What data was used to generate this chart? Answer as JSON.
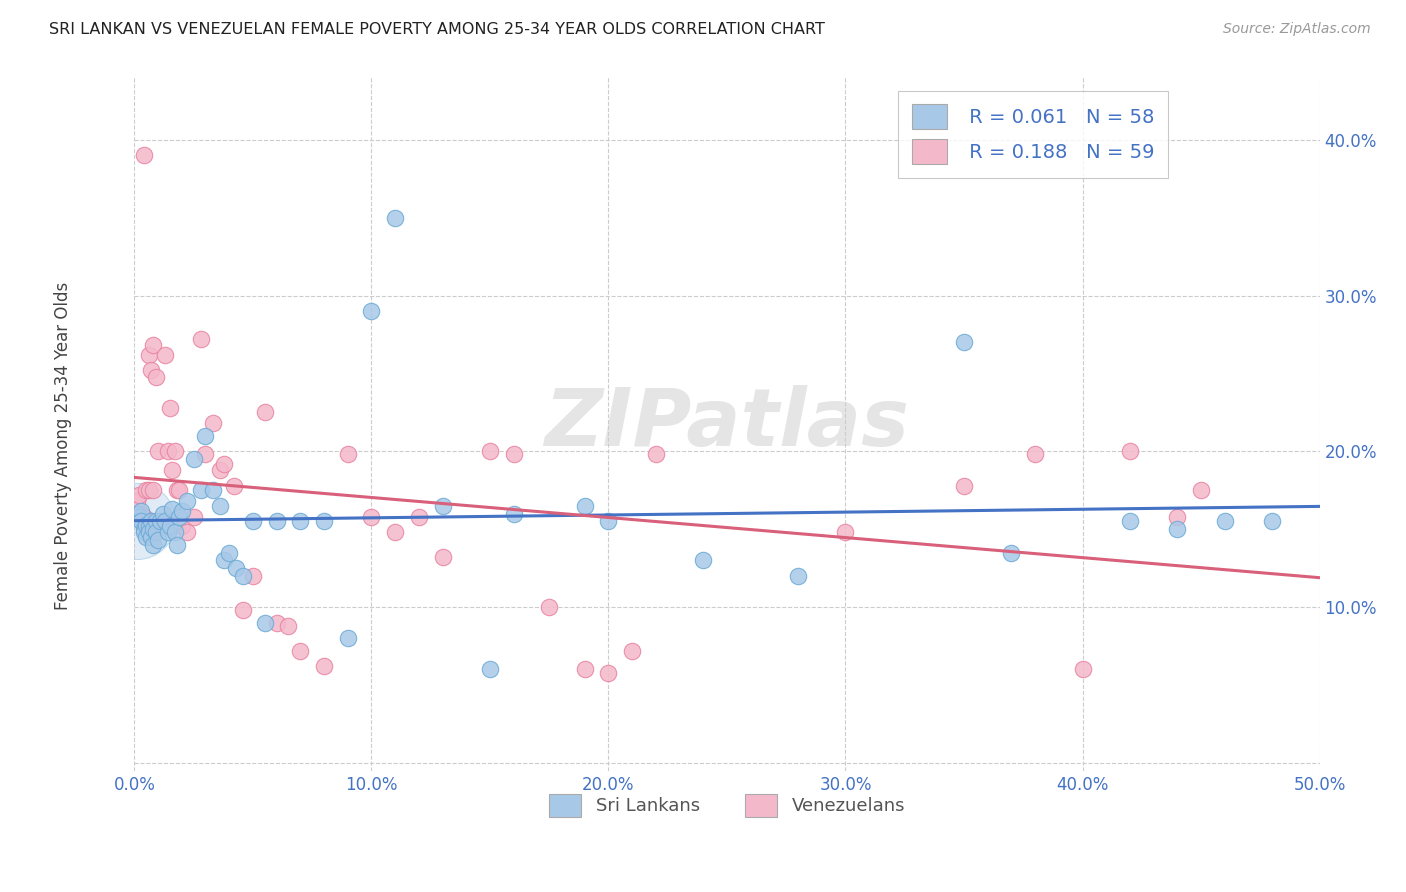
{
  "title": "SRI LANKAN VS VENEZUELAN FEMALE POVERTY AMONG 25-34 YEAR OLDS CORRELATION CHART",
  "source": "Source: ZipAtlas.com",
  "ylabel": "Female Poverty Among 25-34 Year Olds",
  "xlim": [
    0.0,
    0.5
  ],
  "ylim": [
    -0.005,
    0.44
  ],
  "xticks": [
    0.0,
    0.1,
    0.2,
    0.3,
    0.4,
    0.5
  ],
  "yticks": [
    0.0,
    0.1,
    0.2,
    0.3,
    0.4
  ],
  "xticklabels": [
    "0.0%",
    "10.0%",
    "20.0%",
    "30.0%",
    "40.0%",
    "50.0%"
  ],
  "yticklabels": [
    "",
    "10.0%",
    "20.0%",
    "30.0%",
    "40.0%"
  ],
  "sri_color": "#a8c8e8",
  "sri_edge": "#6aaad4",
  "ven_color": "#f4b8cb",
  "ven_edge": "#e882a0",
  "sri_line_color": "#4472c4",
  "ven_line_color": "#d9607a",
  "legend_color": "#4472c4",
  "background_color": "#ffffff",
  "watermark": "ZIPatlas",
  "sri_R": "0.061",
  "sri_N": "58",
  "ven_R": "0.188",
  "ven_N": "59",
  "sri_label": "Sri Lankans",
  "ven_label": "Venezuelans",
  "sri_x": [
    0.001,
    0.002,
    0.003,
    0.003,
    0.004,
    0.004,
    0.005,
    0.005,
    0.006,
    0.006,
    0.007,
    0.007,
    0.008,
    0.008,
    0.009,
    0.009,
    0.01,
    0.011,
    0.012,
    0.013,
    0.014,
    0.015,
    0.016,
    0.017,
    0.018,
    0.019,
    0.02,
    0.022,
    0.025,
    0.028,
    0.03,
    0.033,
    0.036,
    0.038,
    0.04,
    0.043,
    0.046,
    0.05,
    0.055,
    0.06,
    0.07,
    0.08,
    0.09,
    0.1,
    0.11,
    0.13,
    0.15,
    0.16,
    0.19,
    0.2,
    0.24,
    0.28,
    0.35,
    0.37,
    0.42,
    0.44,
    0.46,
    0.48
  ],
  "sri_y": [
    0.16,
    0.158,
    0.162,
    0.155,
    0.15,
    0.148,
    0.153,
    0.145,
    0.152,
    0.148,
    0.155,
    0.145,
    0.15,
    0.14,
    0.155,
    0.148,
    0.143,
    0.155,
    0.16,
    0.155,
    0.148,
    0.152,
    0.163,
    0.148,
    0.14,
    0.158,
    0.162,
    0.168,
    0.195,
    0.175,
    0.21,
    0.175,
    0.165,
    0.13,
    0.135,
    0.125,
    0.12,
    0.155,
    0.09,
    0.155,
    0.155,
    0.155,
    0.08,
    0.29,
    0.35,
    0.165,
    0.06,
    0.16,
    0.165,
    0.155,
    0.13,
    0.12,
    0.27,
    0.135,
    0.155,
    0.15,
    0.155,
    0.155
  ],
  "ven_x": [
    0.001,
    0.002,
    0.003,
    0.004,
    0.004,
    0.005,
    0.005,
    0.006,
    0.006,
    0.007,
    0.007,
    0.008,
    0.008,
    0.009,
    0.01,
    0.011,
    0.012,
    0.013,
    0.014,
    0.015,
    0.016,
    0.017,
    0.018,
    0.019,
    0.02,
    0.022,
    0.025,
    0.028,
    0.03,
    0.033,
    0.036,
    0.038,
    0.042,
    0.046,
    0.05,
    0.055,
    0.06,
    0.065,
    0.07,
    0.08,
    0.09,
    0.1,
    0.11,
    0.12,
    0.13,
    0.15,
    0.16,
    0.175,
    0.19,
    0.2,
    0.21,
    0.22,
    0.3,
    0.35,
    0.38,
    0.4,
    0.42,
    0.44,
    0.45
  ],
  "ven_y": [
    0.168,
    0.172,
    0.16,
    0.39,
    0.158,
    0.175,
    0.155,
    0.262,
    0.175,
    0.252,
    0.155,
    0.268,
    0.175,
    0.248,
    0.2,
    0.15,
    0.155,
    0.262,
    0.2,
    0.228,
    0.188,
    0.2,
    0.175,
    0.175,
    0.152,
    0.148,
    0.158,
    0.272,
    0.198,
    0.218,
    0.188,
    0.192,
    0.178,
    0.098,
    0.12,
    0.225,
    0.09,
    0.088,
    0.072,
    0.062,
    0.198,
    0.158,
    0.148,
    0.158,
    0.132,
    0.2,
    0.198,
    0.1,
    0.06,
    0.058,
    0.072,
    0.198,
    0.148,
    0.178,
    0.198,
    0.06,
    0.2,
    0.158,
    0.175
  ]
}
